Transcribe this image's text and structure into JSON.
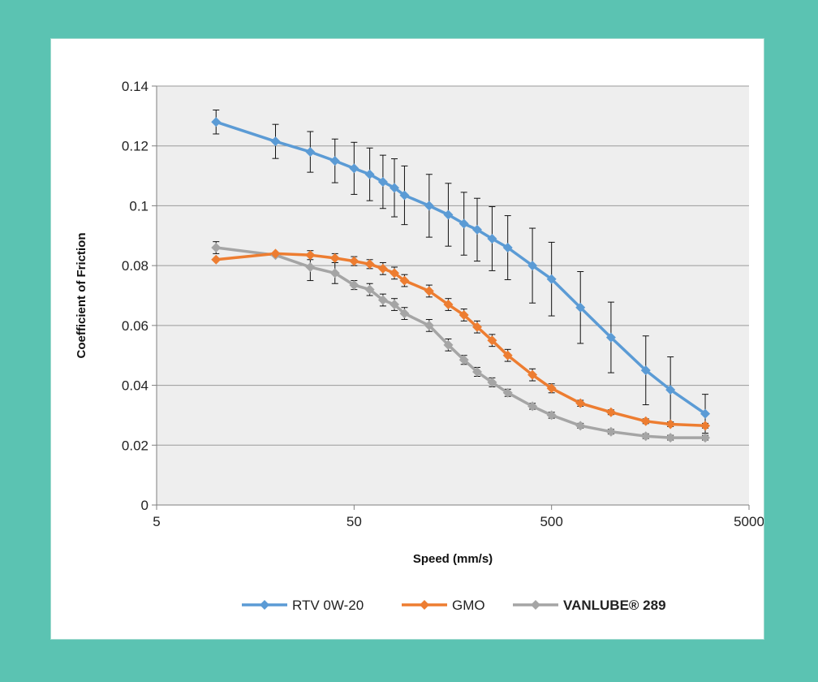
{
  "chart_data": {
    "type": "line",
    "xlabel": "Speed (mm/s)",
    "ylabel": "Coefficient of Friction",
    "x_scale": "log",
    "xlim": [
      5,
      5000
    ],
    "ylim": [
      0,
      0.14
    ],
    "x_ticks": [
      "5",
      "50",
      "500",
      "5000"
    ],
    "y_ticks": [
      "0",
      "0.02",
      "0.04",
      "0.06",
      "0.08",
      "0.1",
      "0.12",
      "0.14"
    ],
    "grid": "horizontal",
    "legend_position": "bottom",
    "series": [
      {
        "name": "RTV 0W-20",
        "color": "#5b9bd5",
        "x": [
          10,
          20,
          30,
          40,
          50,
          60,
          70,
          80,
          90,
          120,
          150,
          180,
          210,
          250,
          300,
          400,
          500,
          700,
          1000,
          1500,
          2000,
          3000
        ],
        "y": [
          0.128,
          0.1215,
          0.118,
          0.115,
          0.1125,
          0.1105,
          0.108,
          0.106,
          0.1035,
          0.1,
          0.097,
          0.094,
          0.092,
          0.089,
          0.086,
          0.08,
          0.0755,
          0.066,
          0.056,
          0.045,
          0.0385,
          0.0305
        ],
        "error": [
          0.004,
          0.0057,
          0.0068,
          0.0073,
          0.0087,
          0.0088,
          0.0089,
          0.0097,
          0.0098,
          0.0105,
          0.0105,
          0.0105,
          0.0105,
          0.0107,
          0.0107,
          0.0125,
          0.0123,
          0.012,
          0.0118,
          0.0115,
          0.011,
          0.0065
        ]
      },
      {
        "name": "GMO",
        "color": "#ed7d31",
        "x": [
          10,
          20,
          30,
          40,
          50,
          60,
          70,
          80,
          90,
          120,
          150,
          180,
          210,
          250,
          300,
          400,
          500,
          700,
          1000,
          1500,
          2000,
          3000
        ],
        "y": [
          0.082,
          0.084,
          0.0835,
          0.0825,
          0.0815,
          0.0805,
          0.079,
          0.0775,
          0.075,
          0.0715,
          0.067,
          0.0635,
          0.0595,
          0.055,
          0.05,
          0.0435,
          0.039,
          0.034,
          0.031,
          0.028,
          0.027,
          0.0265
        ],
        "error": [
          0.0,
          0.0,
          0.0015,
          0.0015,
          0.0015,
          0.0015,
          0.002,
          0.002,
          0.002,
          0.002,
          0.002,
          0.002,
          0.002,
          0.002,
          0.002,
          0.002,
          0.0015,
          0.001,
          0.0008,
          0.0008,
          0.0008,
          0.0008
        ]
      },
      {
        "name": "VANLUBE® 289",
        "color": "#a5a5a5",
        "x": [
          10,
          20,
          30,
          40,
          50,
          60,
          70,
          80,
          90,
          120,
          150,
          180,
          210,
          250,
          300,
          400,
          500,
          700,
          1000,
          1500,
          2000,
          3000
        ],
        "y": [
          0.086,
          0.0835,
          0.0795,
          0.0775,
          0.0735,
          0.072,
          0.0685,
          0.067,
          0.064,
          0.06,
          0.0535,
          0.0485,
          0.0445,
          0.041,
          0.0375,
          0.033,
          0.03,
          0.0265,
          0.0245,
          0.023,
          0.0225,
          0.0225
        ],
        "error": [
          0.002,
          0.0,
          0.0045,
          0.0035,
          0.0015,
          0.002,
          0.002,
          0.002,
          0.002,
          0.002,
          0.002,
          0.0015,
          0.0015,
          0.0015,
          0.0012,
          0.001,
          0.001,
          0.0008,
          0.0008,
          0.0008,
          0.0008,
          0.0008
        ]
      }
    ]
  }
}
